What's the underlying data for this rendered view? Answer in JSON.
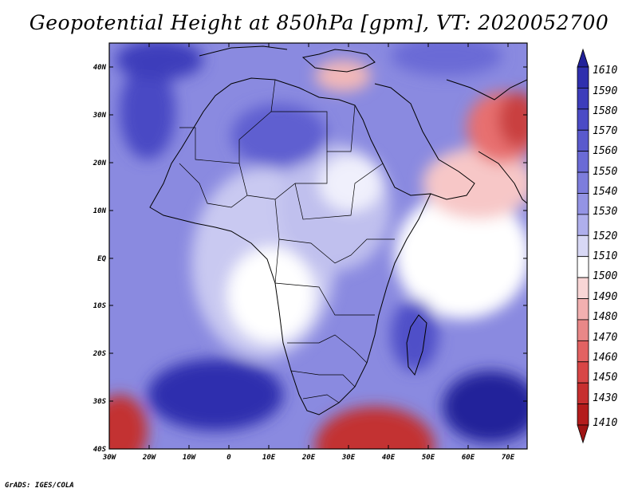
{
  "title": "Geopotential Height at 850hPa [gpm], VT: 2020052700",
  "credit": "GrADS: IGES/COLA",
  "map": {
    "lon_range": [
      -30,
      75
    ],
    "lat_range": [
      -40,
      45
    ],
    "lat_ticks": [
      "40N",
      "30N",
      "20N",
      "10N",
      "EQ",
      "10S",
      "20S",
      "30S",
      "40S"
    ],
    "lon_ticks": [
      "30W",
      "20W",
      "10W",
      "0",
      "10E",
      "20E",
      "30E",
      "40E",
      "50E",
      "60E",
      "70E"
    ]
  },
  "colorbar": {
    "labels": [
      "1610",
      "1590",
      "1580",
      "1570",
      "1560",
      "1550",
      "1540",
      "1530",
      "1520",
      "1510",
      "1500",
      "1490",
      "1480",
      "1470",
      "1460",
      "1450",
      "1430",
      "1410"
    ],
    "colors": [
      "#21219a",
      "#2f2fae",
      "#3d3dbb",
      "#4b4bc6",
      "#5a5acd",
      "#6b6bd6",
      "#7d7ddc",
      "#9494e4",
      "#afafec",
      "#d8d8f5",
      "#ffffff",
      "#f9d6d6",
      "#f2b0b0",
      "#e98888",
      "#e26262",
      "#d84646",
      "#c72f2f",
      "#b41c1c",
      "#a01414"
    ]
  }
}
